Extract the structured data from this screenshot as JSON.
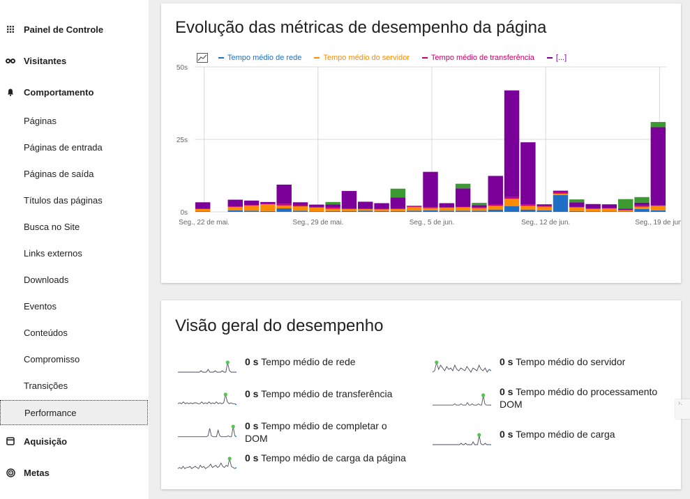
{
  "sidebar": {
    "sections": [
      {
        "label": "Painel de Controle",
        "icon": "grid-icon"
      },
      {
        "label": "Visitantes",
        "icon": "binoculars-icon"
      },
      {
        "label": "Comportamento",
        "icon": "bell-icon"
      },
      {
        "label": "Aquisição",
        "icon": "calendar-box-icon"
      },
      {
        "label": "Metas",
        "icon": "target-icon"
      }
    ],
    "items": [
      {
        "label": "Páginas"
      },
      {
        "label": "Páginas de entrada"
      },
      {
        "label": "Páginas de saída"
      },
      {
        "label": "Títulos das páginas"
      },
      {
        "label": "Busca no Site"
      },
      {
        "label": "Links externos"
      },
      {
        "label": "Downloads"
      },
      {
        "label": "Eventos"
      },
      {
        "label": "Conteúdos"
      },
      {
        "label": "Compromisso"
      },
      {
        "label": "Transições"
      },
      {
        "label": "Performance",
        "active": true
      }
    ]
  },
  "evolution": {
    "title": "Evolução das métricas de desempenho da página",
    "legend": [
      {
        "label": "Tempo médio de rede",
        "color": "#1f6fc6"
      },
      {
        "label": "Tempo médio do servidor",
        "color": "#ff8c00"
      },
      {
        "label": "Tempo médio de transferência",
        "color": "#cc0066"
      },
      {
        "label": "[...]",
        "color": "#7b0099"
      }
    ]
  },
  "chart_data": {
    "type": "bar",
    "stacked": true,
    "title": "Evolução das métricas de desempenho da página",
    "xlabel": "",
    "ylabel": "",
    "ylim": [
      0,
      50
    ],
    "y_ticks": [
      "0s",
      "25s",
      "50s"
    ],
    "x_tick_labels": [
      "Seg., 22 de mai.",
      "Seg., 29 de mai.",
      "Seg., 5 de jun.",
      "Seg., 12 de jun.",
      "Seg., 19 de jun."
    ],
    "x_tick_index": [
      0,
      7,
      14,
      21,
      28
    ],
    "categories": [
      "2023-05-22",
      "2023-05-23",
      "2023-05-24",
      "2023-05-25",
      "2023-05-26",
      "2023-05-27",
      "2023-05-28",
      "2023-05-29",
      "2023-05-30",
      "2023-05-31",
      "2023-06-01",
      "2023-06-02",
      "2023-06-03",
      "2023-06-04",
      "2023-06-05",
      "2023-06-06",
      "2023-06-07",
      "2023-06-08",
      "2023-06-09",
      "2023-06-10",
      "2023-06-11",
      "2023-06-12",
      "2023-06-13",
      "2023-06-14",
      "2023-06-15",
      "2023-06-16",
      "2023-06-17",
      "2023-06-18",
      "2023-06-19"
    ],
    "series": [
      {
        "name": "Tempo médio de rede",
        "color": "#1f6fc6",
        "values": [
          0.2,
          0,
          0.5,
          0.4,
          0.3,
          1.2,
          0.4,
          0.2,
          0.3,
          0.3,
          0.4,
          0.3,
          0.3,
          0.4,
          0.5,
          0.4,
          0.4,
          0.4,
          0.8,
          2.0,
          0.8,
          0.5,
          5.8,
          0.3,
          0.2,
          0.2,
          0.2,
          1.0,
          0.5
        ]
      },
      {
        "name": "Tempo médio do servidor",
        "color": "#ff8c00",
        "values": [
          0.8,
          0,
          1.2,
          1.8,
          2.3,
          1.0,
          1.5,
          1.3,
          0.8,
          0.7,
          0.6,
          0.6,
          0.7,
          1.3,
          0.8,
          1.0,
          1.2,
          0.9,
          1.3,
          2.5,
          1.3,
          1.3,
          0.5,
          1.3,
          0.9,
          1.0,
          0.4,
          0.8,
          1.6
        ]
      },
      {
        "name": "Tempo médio de transferência",
        "color": "#cc0066",
        "values": [
          0.1,
          0,
          0.2,
          0.2,
          0.2,
          0.6,
          0.4,
          0.2,
          0.4,
          0.2,
          0.1,
          0.1,
          0.2,
          0.4,
          0.3,
          0.2,
          0.2,
          0.2,
          0.4,
          0.6,
          0.5,
          0.2,
          0.5,
          0.1,
          0.1,
          0.1,
          0.1,
          0.4,
          0.1
        ]
      },
      {
        "name": "[...]",
        "color": "#7b0099",
        "values": [
          2.2,
          0,
          2.3,
          1.5,
          0.6,
          6.6,
          1.0,
          0.8,
          1.1,
          6.0,
          2.4,
          2.0,
          3.8,
          0,
          12.2,
          1.4,
          6.3,
          0.8,
          9.9,
          36.8,
          21.4,
          0.6,
          0.5,
          1.6,
          1.5,
          1.3,
          0.4,
          1.0,
          27.0
        ]
      },
      {
        "name": "",
        "color": "#3d9a32",
        "values": [
          0,
          0,
          0,
          0,
          0,
          0,
          0,
          0,
          0.8,
          0,
          0,
          0,
          3.0,
          0,
          0,
          0,
          1.6,
          0.8,
          0,
          0,
          0,
          0,
          0,
          1.0,
          0,
          0,
          3.3,
          1.9,
          1.8
        ]
      }
    ]
  },
  "overview": {
    "title": "Visão geral do desempenho",
    "items": [
      {
        "value": "0 s",
        "label": "Tempo médio de rede",
        "spark": [
          1,
          1,
          1,
          1,
          1,
          1,
          1,
          1,
          1,
          1,
          1,
          1,
          1,
          2,
          1,
          1,
          1,
          3,
          1,
          1,
          1,
          2,
          1,
          1,
          1,
          2,
          1,
          1,
          8,
          2,
          1,
          1,
          1,
          1
        ],
        "peak": 28
      },
      {
        "value": "0 s",
        "label": "Tempo médio do servidor",
        "spark": [
          1,
          2,
          8,
          3,
          6,
          4,
          2,
          5,
          3,
          4,
          2,
          6,
          3,
          2,
          4,
          3,
          2,
          5,
          3,
          1,
          4,
          3,
          2,
          6,
          3,
          2,
          4,
          1,
          3,
          2
        ],
        "peak": 2
      },
      {
        "value": "0 s",
        "label": "Tempo médio de transferência",
        "spark": [
          2,
          3,
          2,
          4,
          2,
          3,
          2,
          3,
          2,
          3,
          3,
          2,
          2,
          4,
          2,
          3,
          2,
          4,
          2,
          3,
          2,
          4,
          2,
          3,
          2,
          3,
          12,
          4,
          2,
          3,
          2,
          2,
          1
        ],
        "peak": 26
      },
      {
        "value": "0 s",
        "label": "Tempo médio do processamento DOM",
        "spark": [
          1,
          1,
          1,
          1,
          1,
          1,
          1,
          1,
          1,
          1,
          1,
          1,
          1,
          1,
          2,
          1,
          1,
          1,
          2,
          1,
          1,
          1,
          3,
          1,
          1,
          2,
          1,
          1,
          1,
          2,
          1,
          1,
          9,
          2,
          1,
          1,
          1,
          1
        ],
        "peak": 32
      },
      {
        "value": "0 s",
        "label": "Tempo médio de completar o DOM",
        "spark": [
          1,
          1,
          1,
          1,
          1,
          1,
          1,
          1,
          1,
          1,
          1,
          1,
          1,
          1,
          1,
          1,
          1,
          1,
          2,
          10,
          2,
          1,
          1,
          1,
          8,
          2,
          1,
          1,
          1,
          1,
          2,
          1,
          1,
          12,
          2,
          1
        ],
        "peak": 33
      },
      {
        "value": "0 s",
        "label": "Tempo médio de carga",
        "spark": [
          1,
          1,
          1,
          1,
          1,
          1,
          1,
          1,
          1,
          1,
          1,
          1,
          1,
          1,
          1,
          1,
          1,
          1,
          1,
          2,
          1,
          1,
          2,
          1,
          1,
          1,
          1,
          3,
          1,
          1,
          1,
          8,
          2,
          1,
          1,
          2,
          1,
          1,
          1,
          1
        ],
        "peak": 31
      },
      {
        "value": "0 s",
        "label": "Tempo médio de carga da página",
        "spark": [
          1,
          2,
          1,
          3,
          1,
          2,
          2,
          3,
          1,
          2,
          3,
          2,
          1,
          4,
          2,
          3,
          1,
          2,
          3,
          5,
          2,
          3,
          4,
          2,
          3,
          6,
          3,
          2,
          4,
          3,
          10,
          3,
          2,
          1,
          2
        ],
        "peak": 30
      }
    ]
  }
}
